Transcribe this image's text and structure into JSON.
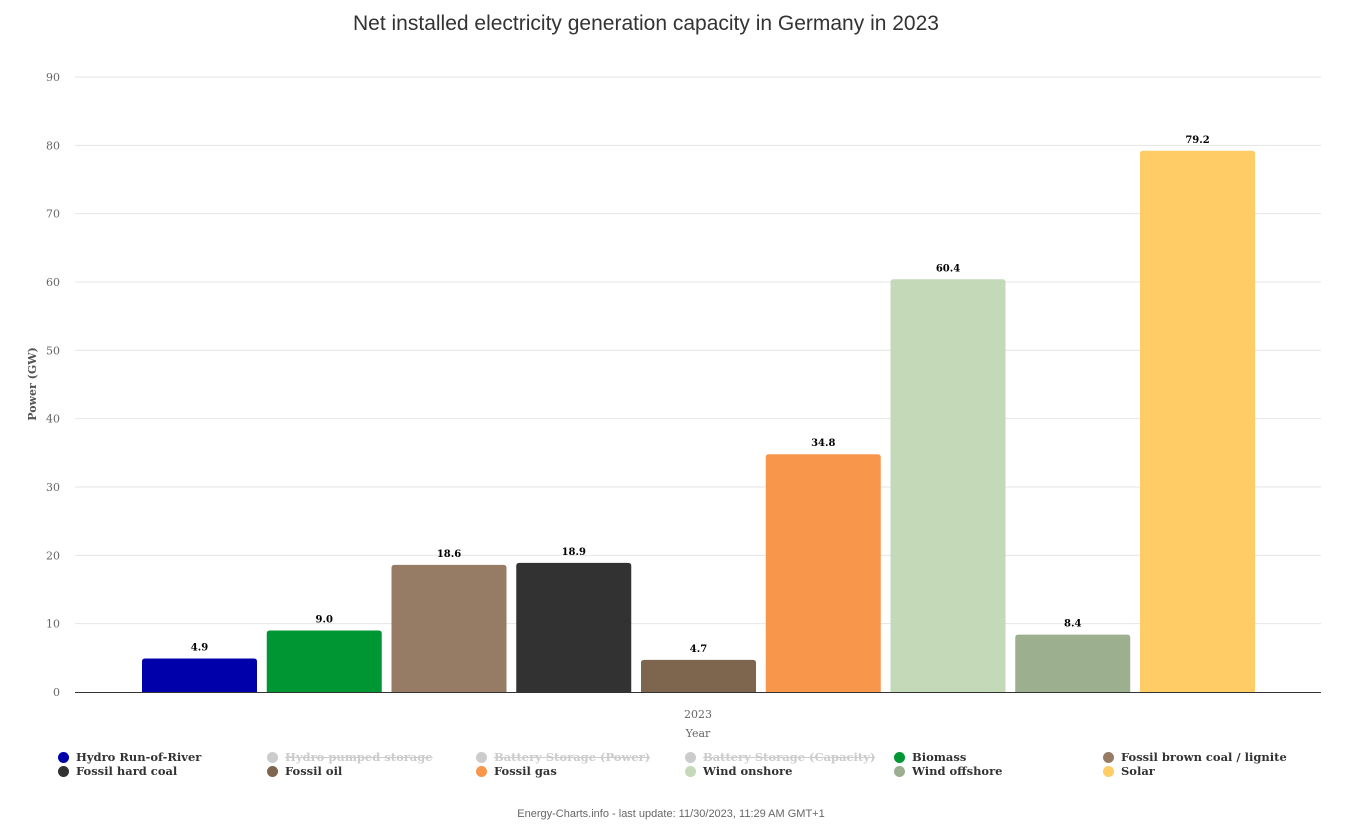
{
  "chart_data": {
    "type": "bar",
    "title": "Net installed electricity generation capacity in Germany in 2023",
    "xlabel": "Year",
    "ylabel": "Power (GW)",
    "categories": [
      "2023"
    ],
    "ylim": [
      0,
      90
    ],
    "yticks": [
      0,
      10,
      20,
      30,
      40,
      50,
      60,
      70,
      80,
      90
    ],
    "grid": true,
    "legend_position": "bottom",
    "series": [
      {
        "name": "Hydro Run-of-River",
        "values": [
          4.9
        ],
        "label": "4.9",
        "color": "#0000aa",
        "visible": true
      },
      {
        "name": "Hydro pumped storage",
        "values": [
          null
        ],
        "label": "",
        "color": "#cccccc",
        "visible": false
      },
      {
        "name": "Battery Storage (Power)",
        "values": [
          null
        ],
        "label": "",
        "color": "#cccccc",
        "visible": false
      },
      {
        "name": "Battery Storage (Capacity)",
        "values": [
          null
        ],
        "label": "",
        "color": "#cccccc",
        "visible": false
      },
      {
        "name": "Biomass",
        "values": [
          9.0
        ],
        "label": "9.0",
        "color": "#009633",
        "visible": true
      },
      {
        "name": "Fossil brown coal / lignite",
        "values": [
          18.6
        ],
        "label": "18.6",
        "color": "#967c64",
        "visible": true
      },
      {
        "name": "Fossil hard coal",
        "values": [
          18.9
        ],
        "label": "18.9",
        "color": "#323232",
        "visible": true
      },
      {
        "name": "Fossil oil",
        "values": [
          4.7
        ],
        "label": "4.7",
        "color": "#7e654d",
        "visible": true
      },
      {
        "name": "Fossil gas",
        "values": [
          34.8
        ],
        "label": "34.8",
        "color": "#f8974c",
        "visible": true
      },
      {
        "name": "Wind onshore",
        "values": [
          60.4
        ],
        "label": "60.4",
        "color": "#c4d9b8",
        "visible": true
      },
      {
        "name": "Wind offshore",
        "values": [
          8.4
        ],
        "label": "8.4",
        "color": "#9caf8f",
        "visible": true
      },
      {
        "name": "Solar",
        "values": [
          79.2
        ],
        "label": "79.2",
        "color": "#ffcc66",
        "visible": true
      }
    ]
  },
  "legend_order": [
    0,
    1,
    2,
    3,
    4,
    5,
    6,
    7,
    8,
    9,
    10,
    11
  ],
  "footer": "Energy-Charts.info - last update: 11/30/2023, 11:29 AM GMT+1"
}
